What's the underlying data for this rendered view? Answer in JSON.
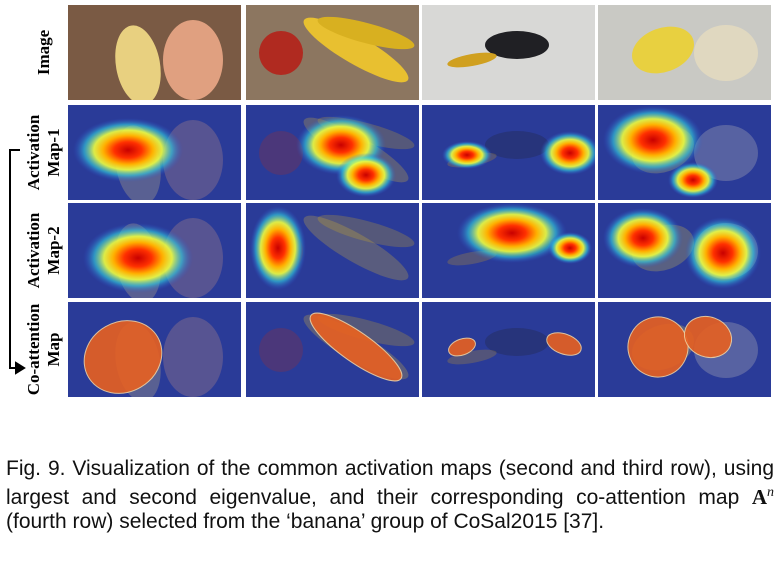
{
  "figure": {
    "rows": [
      {
        "label_lines": [
          "Image"
        ]
      },
      {
        "label_lines": [
          "Activation",
          "Map-1"
        ]
      },
      {
        "label_lines": [
          "Activation",
          "Map-2"
        ]
      },
      {
        "label_lines": [
          "Co-attention",
          "Map"
        ]
      }
    ]
  },
  "caption": {
    "before": "Fig. 9. Visualization of the common activation maps (second and third row), using largest and second eigenvalue, and their corresponding co-attention map ",
    "math_symbol": "A",
    "math_superscript": "n",
    "after": " (fourth row) selected from the ‘banana’ group of CoSal2015 [37]."
  }
}
